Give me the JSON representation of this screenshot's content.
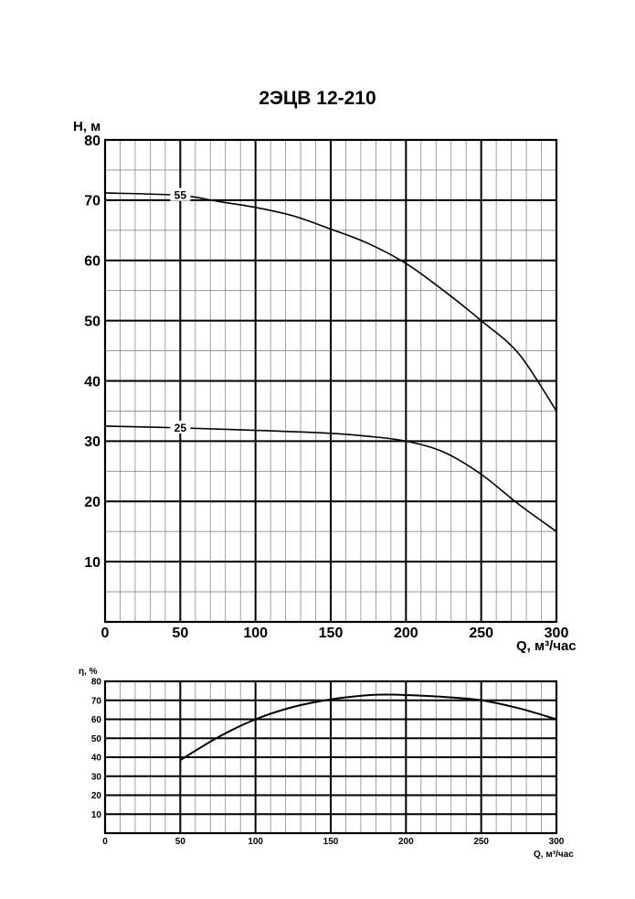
{
  "title": "2ЭЦВ 12-210",
  "chart_data": [
    {
      "type": "line",
      "ylabel": "H, м",
      "xlabel": "Q, м³/час",
      "xlim": [
        0,
        300
      ],
      "ylim": [
        0,
        80
      ],
      "xticks": [
        "0",
        "50",
        "100",
        "150",
        "200",
        "250",
        "300"
      ],
      "yticks": [
        "10",
        "20",
        "30",
        "40",
        "50",
        "60",
        "70",
        "80"
      ],
      "grid": true,
      "series": [
        {
          "name": "55",
          "x": [
            0,
            50,
            75,
            100,
            125,
            150,
            175,
            200,
            225,
            250,
            275,
            300
          ],
          "values": [
            71.2,
            70.8,
            69.8,
            68.8,
            67.4,
            65.2,
            62.8,
            59.5,
            55.0,
            50.0,
            44.5,
            35.0
          ]
        },
        {
          "name": "25",
          "x": [
            0,
            50,
            100,
            150,
            175,
            200,
            225,
            250,
            275,
            300
          ],
          "values": [
            32.5,
            32.2,
            31.8,
            31.3,
            30.8,
            30.0,
            28.2,
            24.5,
            19.5,
            15.0
          ]
        }
      ]
    },
    {
      "type": "line",
      "ylabel": "η, %",
      "xlabel": "Q, м³/час",
      "xlim": [
        0,
        300
      ],
      "ylim": [
        0,
        80
      ],
      "xticks": [
        "0",
        "50",
        "100",
        "150",
        "200",
        "250",
        "300"
      ],
      "yticks": [
        "10",
        "20",
        "30",
        "40",
        "50",
        "60",
        "70",
        "80"
      ],
      "grid": true,
      "series": [
        {
          "x": [
            50,
            75,
            100,
            125,
            150,
            175,
            190,
            200,
            225,
            250,
            275,
            300
          ],
          "values": [
            38.5,
            50.5,
            60.0,
            66.5,
            70.5,
            72.7,
            73.0,
            72.8,
            71.8,
            70.0,
            65.8,
            60.0
          ]
        }
      ]
    }
  ]
}
